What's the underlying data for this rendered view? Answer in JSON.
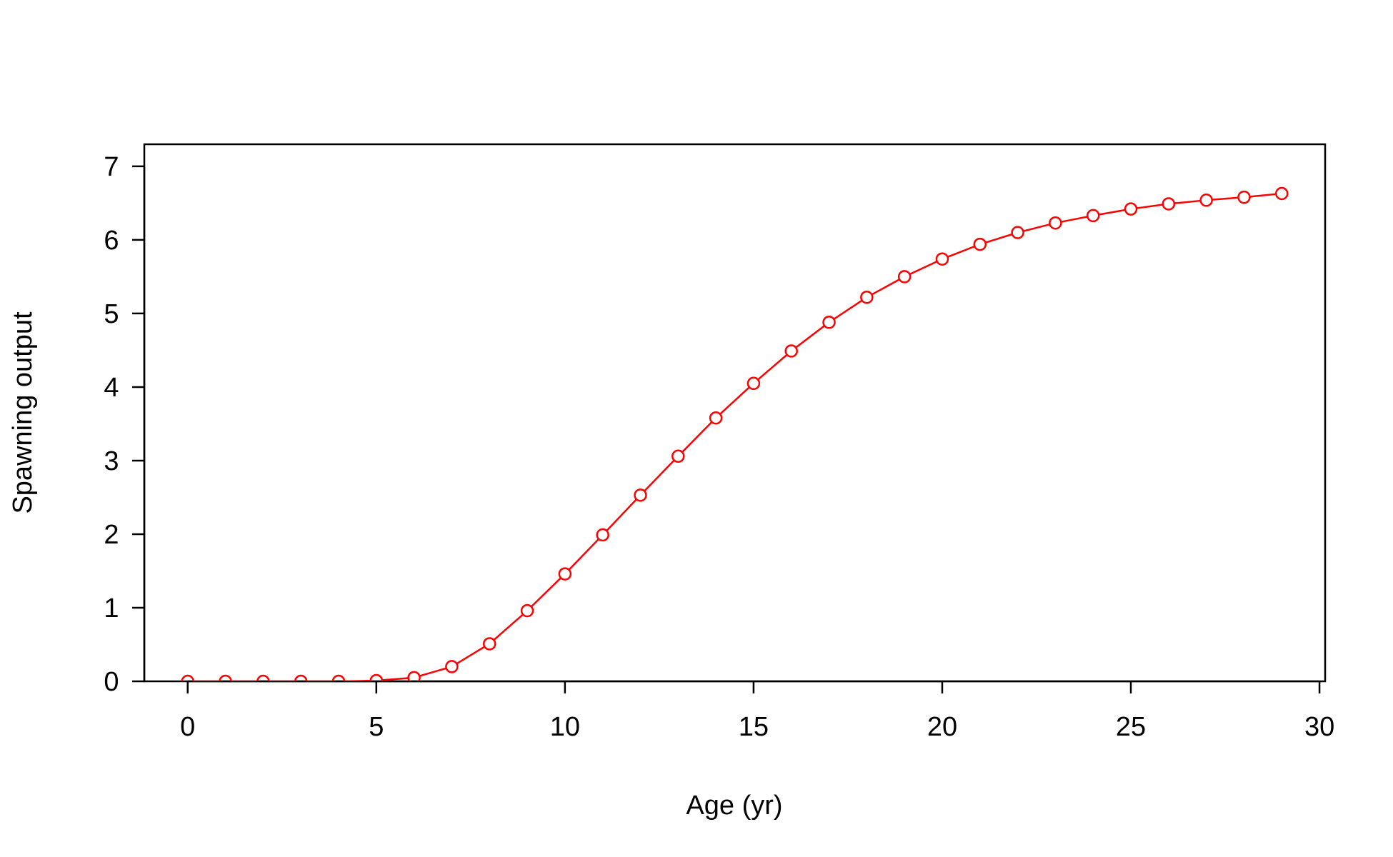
{
  "chart_data": {
    "type": "line",
    "title": "",
    "xlabel": "Age (yr)",
    "ylabel": "Spawning output",
    "xlim": [
      -1.15,
      30.15
    ],
    "ylim": [
      0,
      7.3
    ],
    "x_ticks": [
      "0",
      "5",
      "10",
      "15",
      "20",
      "25",
      "30"
    ],
    "y_ticks": [
      "0",
      "1",
      "2",
      "3",
      "4",
      "5",
      "6",
      "7"
    ],
    "grid": false,
    "legend": "none",
    "series": [
      {
        "color": "#ff0000",
        "markers": "open-circle",
        "line": true,
        "x": [
          0,
          1,
          2,
          3,
          4,
          5,
          6,
          7,
          8,
          9,
          10,
          11,
          12,
          13,
          14,
          15,
          16,
          17,
          18,
          19,
          20,
          21,
          22,
          23,
          24,
          25,
          26,
          27,
          28,
          29
        ],
        "y": [
          0,
          0,
          0,
          0,
          0,
          0.01,
          0.05,
          0.2,
          0.51,
          0.96,
          1.46,
          1.99,
          2.53,
          3.06,
          3.58,
          4.05,
          4.49,
          4.88,
          5.22,
          5.5,
          5.74,
          5.94,
          6.1,
          6.23,
          6.33,
          6.42,
          6.49,
          6.54,
          6.58,
          6.63
        ]
      }
    ]
  }
}
